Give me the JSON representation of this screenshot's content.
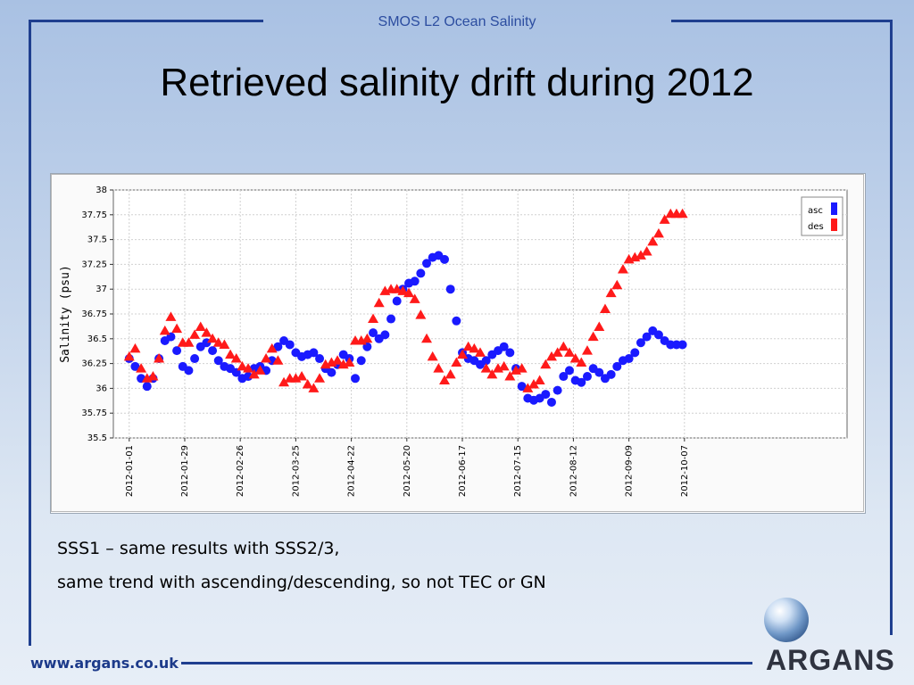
{
  "slide": {
    "header": "SMOS L2 Ocean Salinity",
    "title": "Retrieved salinity drift during 2012",
    "body_lines": [
      "SSS1 – same results with SSS2/3,",
      "same trend with ascending/descending, so not TEC or GN"
    ],
    "footer_url": "www.argans.co.uk",
    "logo_text": "ARGANS"
  },
  "colors": {
    "frame": "#1f3f8f",
    "asc": "#1a1aff",
    "des": "#ff1a1a"
  },
  "chart_data": {
    "type": "scatter",
    "ylabel": "Salinity (psu)",
    "xlabel": "",
    "ylim": [
      35.5,
      38
    ],
    "yticks": [
      "35.5",
      "35.75",
      "36",
      "36.25",
      "36.5",
      "36.75",
      "37",
      "37.25",
      "37.5",
      "37.75",
      "38"
    ],
    "xticks": [
      "2012-01-01",
      "2012-01-29",
      "2012-02-26",
      "2012-03-25",
      "2012-04-22",
      "2012-05-20",
      "2012-06-17",
      "2012-07-15",
      "2012-08-12",
      "2012-09-09",
      "2012-10-07"
    ],
    "legend_position": "top-right",
    "grid": true,
    "series": [
      {
        "name": "asc",
        "marker": "circle",
        "x": [
          "2012-01-01",
          "2012-01-04",
          "2012-01-07",
          "2012-01-10",
          "2012-01-13",
          "2012-01-16",
          "2012-01-19",
          "2012-01-22",
          "2012-01-25",
          "2012-01-28",
          "2012-01-31",
          "2012-02-03",
          "2012-02-06",
          "2012-02-09",
          "2012-02-12",
          "2012-02-15",
          "2012-02-18",
          "2012-02-21",
          "2012-02-24",
          "2012-02-27",
          "2012-03-01",
          "2012-03-04",
          "2012-03-07",
          "2012-03-10",
          "2012-03-13",
          "2012-03-16",
          "2012-03-19",
          "2012-03-22",
          "2012-03-25",
          "2012-03-28",
          "2012-03-31",
          "2012-04-03",
          "2012-04-06",
          "2012-04-09",
          "2012-04-12",
          "2012-04-15",
          "2012-04-18",
          "2012-04-21",
          "2012-04-24",
          "2012-04-27",
          "2012-04-30",
          "2012-05-03",
          "2012-05-06",
          "2012-05-09",
          "2012-05-12",
          "2012-05-15",
          "2012-05-18",
          "2012-05-21",
          "2012-05-24",
          "2012-05-27",
          "2012-05-30",
          "2012-06-02",
          "2012-06-05",
          "2012-06-08",
          "2012-06-11",
          "2012-06-14",
          "2012-06-17",
          "2012-06-20",
          "2012-06-23",
          "2012-06-26",
          "2012-06-29",
          "2012-07-02",
          "2012-07-05",
          "2012-07-08",
          "2012-07-11",
          "2012-07-14",
          "2012-07-17",
          "2012-07-20",
          "2012-07-23",
          "2012-07-26",
          "2012-07-29",
          "2012-08-01",
          "2012-08-04",
          "2012-08-07",
          "2012-08-10",
          "2012-08-13",
          "2012-08-16",
          "2012-08-19",
          "2012-08-22",
          "2012-08-25",
          "2012-08-28",
          "2012-08-31",
          "2012-09-03",
          "2012-09-06",
          "2012-09-09",
          "2012-09-12",
          "2012-09-15",
          "2012-09-18",
          "2012-09-21",
          "2012-09-24",
          "2012-09-27",
          "2012-09-30",
          "2012-10-03",
          "2012-10-06"
        ],
        "values": [
          36.3,
          36.22,
          36.1,
          36.02,
          36.1,
          36.3,
          36.48,
          36.52,
          36.38,
          36.22,
          36.18,
          36.3,
          36.42,
          36.46,
          36.38,
          36.28,
          36.22,
          36.2,
          36.16,
          36.1,
          36.12,
          36.2,
          36.22,
          36.18,
          36.28,
          36.42,
          36.48,
          36.44,
          36.36,
          36.32,
          36.34,
          36.36,
          36.3,
          36.2,
          36.16,
          36.24,
          36.34,
          36.3,
          36.1,
          36.28,
          36.42,
          36.56,
          36.5,
          36.54,
          36.7,
          36.88,
          37.0,
          37.06,
          37.08,
          37.16,
          37.26,
          37.32,
          37.34,
          37.3,
          37.0,
          36.68,
          36.36,
          36.3,
          36.28,
          36.24,
          36.28,
          36.34,
          36.38,
          36.42,
          36.36,
          36.2,
          36.02,
          35.9,
          35.88,
          35.9,
          35.94,
          35.86,
          35.98,
          36.12,
          36.18,
          36.08,
          36.06,
          36.12,
          36.2,
          36.16,
          36.1,
          36.14,
          36.22,
          36.28,
          36.3,
          36.36,
          36.46,
          36.52,
          36.58,
          36.54,
          36.48,
          36.44,
          36.44,
          36.44
        ]
      },
      {
        "name": "des",
        "marker": "triangle",
        "x": [
          "2012-01-01",
          "2012-01-04",
          "2012-01-07",
          "2012-01-10",
          "2012-01-13",
          "2012-01-16",
          "2012-01-19",
          "2012-01-22",
          "2012-01-25",
          "2012-01-28",
          "2012-01-31",
          "2012-02-03",
          "2012-02-06",
          "2012-02-09",
          "2012-02-12",
          "2012-02-15",
          "2012-02-18",
          "2012-02-21",
          "2012-02-24",
          "2012-02-27",
          "2012-03-01",
          "2012-03-04",
          "2012-03-07",
          "2012-03-10",
          "2012-03-13",
          "2012-03-16",
          "2012-03-19",
          "2012-03-22",
          "2012-03-25",
          "2012-03-28",
          "2012-03-31",
          "2012-04-03",
          "2012-04-06",
          "2012-04-09",
          "2012-04-12",
          "2012-04-15",
          "2012-04-18",
          "2012-04-21",
          "2012-04-24",
          "2012-04-27",
          "2012-04-30",
          "2012-05-03",
          "2012-05-06",
          "2012-05-09",
          "2012-05-12",
          "2012-05-15",
          "2012-05-18",
          "2012-05-21",
          "2012-05-24",
          "2012-05-27",
          "2012-05-30",
          "2012-06-02",
          "2012-06-05",
          "2012-06-08",
          "2012-06-11",
          "2012-06-14",
          "2012-06-17",
          "2012-06-20",
          "2012-06-23",
          "2012-06-26",
          "2012-06-29",
          "2012-07-02",
          "2012-07-05",
          "2012-07-08",
          "2012-07-11",
          "2012-07-14",
          "2012-07-17",
          "2012-07-20",
          "2012-07-23",
          "2012-07-26",
          "2012-07-29",
          "2012-08-01",
          "2012-08-04",
          "2012-08-07",
          "2012-08-10",
          "2012-08-13",
          "2012-08-16",
          "2012-08-19",
          "2012-08-22",
          "2012-08-25",
          "2012-08-28",
          "2012-08-31",
          "2012-09-03",
          "2012-09-06",
          "2012-09-09",
          "2012-09-12",
          "2012-09-15",
          "2012-09-18",
          "2012-09-21",
          "2012-09-24",
          "2012-09-27",
          "2012-09-30",
          "2012-10-03",
          "2012-10-06"
        ],
        "values": [
          36.32,
          36.4,
          36.2,
          36.1,
          36.12,
          36.3,
          36.58,
          36.72,
          36.6,
          36.46,
          36.46,
          36.54,
          36.62,
          36.56,
          36.5,
          36.46,
          36.44,
          36.34,
          36.3,
          36.22,
          36.2,
          36.14,
          36.18,
          36.3,
          36.4,
          36.28,
          36.06,
          36.1,
          36.1,
          36.12,
          36.04,
          36.0,
          36.1,
          36.24,
          36.26,
          36.28,
          36.24,
          36.26,
          36.48,
          36.48,
          36.5,
          36.7,
          36.86,
          36.98,
          37.0,
          37.0,
          36.98,
          36.96,
          36.9,
          36.74,
          36.5,
          36.32,
          36.2,
          36.08,
          36.14,
          36.26,
          36.34,
          36.42,
          36.4,
          36.36,
          36.2,
          36.14,
          36.2,
          36.22,
          36.12,
          36.18,
          36.2,
          36.0,
          36.04,
          36.08,
          36.24,
          36.32,
          36.36,
          36.42,
          36.36,
          36.3,
          36.26,
          36.38,
          36.52,
          36.62,
          36.8,
          36.96,
          37.04,
          37.2,
          37.3,
          37.32,
          37.34,
          37.38,
          37.48,
          37.56,
          37.7,
          37.76,
          37.76,
          37.76
        ]
      }
    ]
  }
}
